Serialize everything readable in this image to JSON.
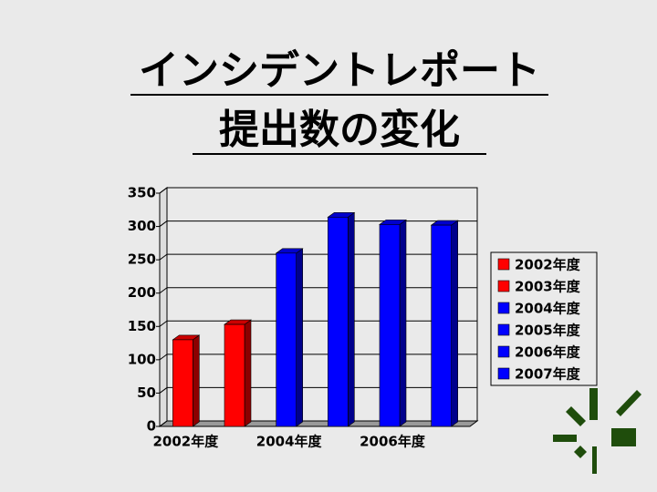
{
  "title_lines": [
    "インシデントレポート",
    "提出数の変化"
  ],
  "chart_data": {
    "type": "bar",
    "categories": [
      "2002年度",
      null,
      "2004年度",
      null,
      "2006年度",
      null
    ],
    "series": [
      {
        "name": "2002年度",
        "color": "#ff0000",
        "values": [
          130,
          null,
          null,
          null,
          null,
          null
        ]
      },
      {
        "name": "2003年度",
        "color": "#ff0000",
        "values": [
          null,
          153,
          null,
          null,
          null,
          null
        ]
      },
      {
        "name": "2004年度",
        "color": "#0000ff",
        "values": [
          null,
          null,
          260,
          null,
          null,
          null
        ]
      },
      {
        "name": "2005年度",
        "color": "#0000ff",
        "values": [
          null,
          null,
          null,
          314,
          null,
          null
        ]
      },
      {
        "name": "2006年度",
        "color": "#0000ff",
        "values": [
          null,
          null,
          null,
          null,
          303,
          null
        ]
      },
      {
        "name": "2007年度",
        "color": "#0000ff",
        "values": [
          null,
          null,
          null,
          null,
          null,
          302
        ]
      }
    ],
    "ylim": [
      0,
      350
    ],
    "yticks": [
      0,
      50,
      100,
      150,
      200,
      250,
      300,
      350
    ],
    "grid": true,
    "legend": "right"
  }
}
